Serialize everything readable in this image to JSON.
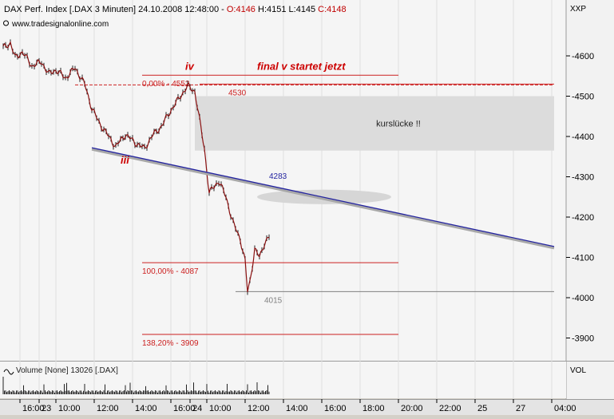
{
  "header": {
    "instrument": "DAX Perf. Index [.DAX  3 Minuten] 24.10.2008 12:48:00 - ",
    "open": "O:4146",
    "high": " H:4151",
    "low": " L:4145",
    "close": "C:4148",
    "website": "www.tradesignalonline.com",
    "axis_code": "XXP"
  },
  "chart_data": {
    "type": "line",
    "title": "DAX Perf. Index [.DAX  3 Minuten] 24.10.2008 12:48:00",
    "y_ticks": [
      3900,
      4000,
      4100,
      4200,
      4300,
      4400,
      4500,
      4600
    ],
    "x_tick_labels": [
      "16:00",
      "23",
      "10:00",
      "12:00",
      "14:00",
      "16:00",
      "24",
      "10:00",
      "12:00",
      "14:00",
      "16:00",
      "18:00",
      "20:00",
      "22:00",
      "25",
      "27",
      "04:00"
    ],
    "x_tick_index": [
      7,
      15,
      22,
      38,
      54,
      70,
      78,
      85,
      101,
      117,
      133,
      149,
      165,
      181,
      197,
      213,
      229
    ],
    "price_path": [
      [
        0,
        4620
      ],
      [
        3,
        4632
      ],
      [
        5,
        4595
      ],
      [
        8,
        4610
      ],
      [
        12,
        4575
      ],
      [
        16,
        4585
      ],
      [
        19,
        4555
      ],
      [
        22,
        4565
      ],
      [
        26,
        4545
      ],
      [
        30,
        4570
      ],
      [
        34,
        4530
      ],
      [
        37,
        4470
      ],
      [
        40,
        4435
      ],
      [
        44,
        4400
      ],
      [
        47,
        4375
      ],
      [
        51,
        4405
      ],
      [
        55,
        4385
      ],
      [
        59,
        4370
      ],
      [
        62,
        4400
      ],
      [
        66,
        4425
      ],
      [
        70,
        4465
      ],
      [
        74,
        4500
      ],
      [
        77,
        4525
      ],
      [
        80,
        4512
      ],
      [
        82,
        4440
      ],
      [
        84,
        4370
      ],
      [
        86,
        4260
      ],
      [
        90,
        4290
      ],
      [
        93,
        4250
      ],
      [
        96,
        4185
      ],
      [
        99,
        4145
      ],
      [
        101,
        4090
      ],
      [
        102,
        4015
      ],
      [
        103,
        4040
      ],
      [
        105,
        4120
      ],
      [
        107,
        4100
      ],
      [
        109,
        4135
      ],
      [
        111,
        4150
      ]
    ],
    "trendline": {
      "from": [
        37,
        4372
      ],
      "to": [
        230,
        4127
      ],
      "color": "#2424a0"
    },
    "levels": [
      {
        "label": "0,00% - 4552",
        "value": 4552,
        "x_from": 58,
        "x_to": 165,
        "color": "#cc2020",
        "dashed": false
      },
      {
        "label": "",
        "value": 4528,
        "x_from": 30,
        "x_to": 230,
        "color": "#cc2020",
        "dashed": true
      },
      {
        "label": "4530",
        "value": 4530,
        "x_from": 82,
        "x_to": 230,
        "color": "#cc2020",
        "dashed": false
      },
      {
        "label": "100,00% - 4087",
        "value": 4087,
        "x_from": 58,
        "x_to": 165,
        "color": "#cc2020",
        "dashed": false
      },
      {
        "label": "4015",
        "value": 4015,
        "x_from": 97,
        "x_to": 230,
        "color": "#808080",
        "dashed": false
      },
      {
        "label": "138,20% - 3909",
        "value": 3909,
        "x_from": 58,
        "x_to": 165,
        "color": "#cc2020",
        "dashed": false
      }
    ],
    "gap_zone": {
      "label": "kurslücke !!",
      "y_from": 4365,
      "y_to": 4500,
      "x_from": 80,
      "x_to": 230
    },
    "ellipse_zone": {
      "x_center": 134,
      "y_center": 4250,
      "x_radius": 28,
      "y_radius": 18
    },
    "trend_label": {
      "text": "4283",
      "x": 111,
      "y": 4295
    },
    "annotations": [
      {
        "text": "iv",
        "x": 76,
        "y": 4565
      },
      {
        "text": "final v startet jetzt",
        "x": 106,
        "y": 4565
      },
      {
        "text": "iii",
        "x": 49,
        "y": 4333
      }
    ],
    "volume_label": "Volume [None] 13026 [.DAX]",
    "volume_axis_label": "VOL"
  }
}
